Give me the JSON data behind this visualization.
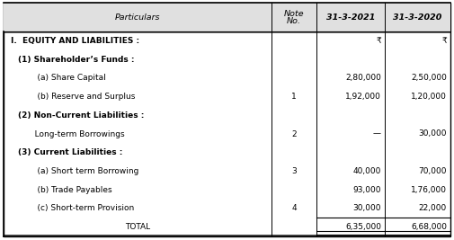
{
  "rows": [
    {
      "text": "I.  EQUITY AND LIABILITIES :",
      "indent": 0,
      "bold": true,
      "note": "",
      "val2021": "₹",
      "val2020": "₹"
    },
    {
      "text": "(1) Shareholder’s Funds :",
      "indent": 1,
      "bold": true,
      "note": "",
      "val2021": "",
      "val2020": ""
    },
    {
      "text": "    (a) Share Capital",
      "indent": 2,
      "bold": false,
      "note": "",
      "val2021": "2,80,000",
      "val2020": "2,50,000"
    },
    {
      "text": "    (b) Reserve and Surplus",
      "indent": 2,
      "bold": false,
      "note": "1",
      "val2021": "1,92,000",
      "val2020": "1,20,000"
    },
    {
      "text": "(2) Non-Current Liabilities :",
      "indent": 1,
      "bold": true,
      "note": "",
      "val2021": "",
      "val2020": ""
    },
    {
      "text": "   Long-term Borrowings",
      "indent": 2,
      "bold": false,
      "note": "2",
      "val2021": "—",
      "val2020": "30,000"
    },
    {
      "text": "(3) Current Liabilities :",
      "indent": 1,
      "bold": true,
      "note": "",
      "val2021": "",
      "val2020": ""
    },
    {
      "text": "    (a) Short term Borrowing",
      "indent": 2,
      "bold": false,
      "note": "3",
      "val2021": "40,000",
      "val2020": "70,000"
    },
    {
      "text": "    (b) Trade Payables",
      "indent": 2,
      "bold": false,
      "note": "",
      "val2021": "93,000",
      "val2020": "1,76,000"
    },
    {
      "text": "    (c) Short-term Provision",
      "indent": 2,
      "bold": false,
      "note": "4",
      "val2021": "30,000",
      "val2020": "22,000"
    },
    {
      "text": "TOTAL",
      "indent": 3,
      "bold": false,
      "note": "",
      "val2021": "6,35,000",
      "val2020": "6,68,000",
      "total_row": true
    }
  ],
  "font_size": 6.5,
  "header_font_size": 6.8,
  "bg_header": "#e8e8e8",
  "figsize": [
    5.05,
    2.67
  ],
  "dpi": 100
}
